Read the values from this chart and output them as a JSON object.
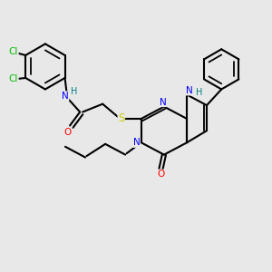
{
  "bg_color": "#e8e8e8",
  "atom_colors": {
    "C": "#000000",
    "N": "#0000ff",
    "O": "#ff0000",
    "S": "#cccc00",
    "Cl": "#00bb00",
    "H_label": "#008080"
  },
  "bond_color": "#000000",
  "bond_width": 1.5,
  "figsize": [
    3.0,
    3.0
  ],
  "dpi": 100
}
